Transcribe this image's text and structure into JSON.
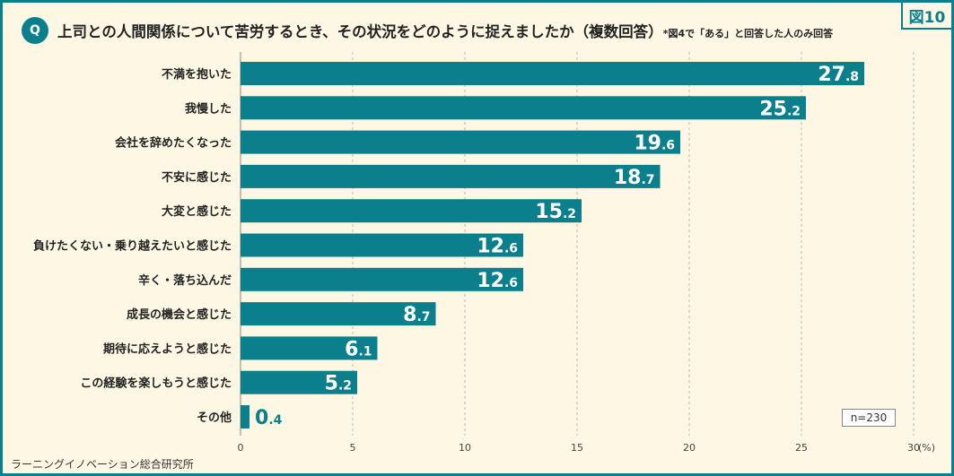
{
  "figure_label": "図10",
  "question_badge": "Q",
  "title": "上司との人間関係について苦労するとき、その状況をどのように捉えましたか（複数回答）",
  "title_note": "*図4で「ある」と回答した人のみ回答",
  "source": "ラーニングイノベーション総合研究所",
  "sample_size": "n=230",
  "colors": {
    "bar": "#0c7f8c",
    "frame": "#0c7f8c",
    "background": "#fdf7e4",
    "grid": "#b9b9b9"
  },
  "chart_data": {
    "type": "bar",
    "orientation": "horizontal",
    "categories": [
      "不満を抱いた",
      "我慢した",
      "会社を辞めたくなった",
      "不安に感じた",
      "大変と感じた",
      "負けたくない・乗り越えたいと感じた",
      "辛く・落ち込んだ",
      "成長の機会と感じた",
      "期待に応えようと感じた",
      "この経験を楽しもうと感じた",
      "その他"
    ],
    "values": [
      27.8,
      25.2,
      19.6,
      18.7,
      15.2,
      12.6,
      12.6,
      8.7,
      6.1,
      5.2,
      0.4
    ],
    "xlim": [
      0,
      30
    ],
    "x_ticks": [
      "0",
      "5",
      "10",
      "15",
      "20",
      "25",
      "30"
    ],
    "x_unit": "(%)",
    "grid": true
  }
}
